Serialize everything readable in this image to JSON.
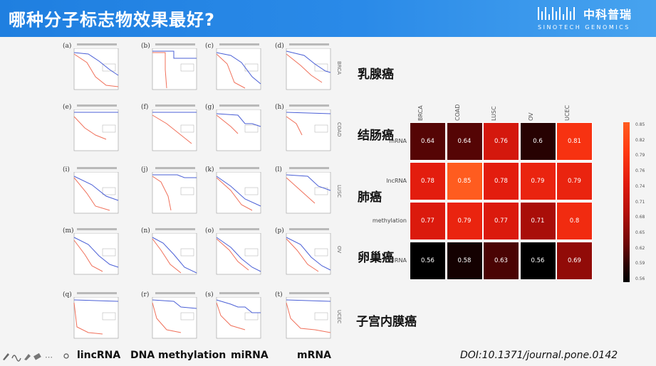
{
  "header": {
    "title": "哪种分子标志物效果最好?",
    "logo_cn": "中科普瑞",
    "logo_en": "SINOTECH GENOMICS"
  },
  "km_panels": {
    "letters": [
      "(a)",
      "(b)",
      "(c)",
      "(d)",
      "(e)",
      "(f)",
      "(g)",
      "(h)",
      "(i)",
      "(j)",
      "(k)",
      "(l)",
      "(m)",
      "(n)",
      "(o)",
      "(p)",
      "(q)",
      "(r)",
      "(s)",
      "(t)"
    ],
    "row_side_labels": [
      "BRCA",
      "COAD",
      "LUSC",
      "OV",
      "UCEC"
    ]
  },
  "cancer_labels": [
    "乳腺癌",
    "结肠癌",
    "肺癌",
    "卵巢癌",
    "子宫内膜癌"
  ],
  "bottom_labels": [
    "lincRNA",
    "DNA methylation",
    "miRNA",
    "mRNA"
  ],
  "doi": "DOI:10.1371/journal.pone.0142",
  "colors": {
    "header_blue": "#1f7fe0",
    "km_blue": "#4a5fd6",
    "km_red": "#f0705a"
  },
  "chart_data": {
    "type": "heatmap",
    "columns": [
      "BRCA",
      "COAD",
      "LUSC",
      "OV",
      "UCEC"
    ],
    "rows": [
      "mRNA",
      "lncRNA",
      "methylation",
      "miRNA"
    ],
    "values": [
      [
        0.64,
        0.64,
        0.76,
        0.6,
        0.81
      ],
      [
        0.78,
        0.85,
        0.78,
        0.79,
        0.79
      ],
      [
        0.77,
        0.79,
        0.77,
        0.71,
        0.8
      ],
      [
        0.56,
        0.58,
        0.63,
        0.56,
        0.69
      ]
    ],
    "colorbar_ticks": [
      "0.85",
      "0.82",
      "0.79",
      "0.76",
      "0.74",
      "0.71",
      "0.68",
      "0.65",
      "0.62",
      "0.59",
      "0.56"
    ],
    "colormap": "black-red-orange",
    "range": [
      0.56,
      0.85
    ]
  }
}
